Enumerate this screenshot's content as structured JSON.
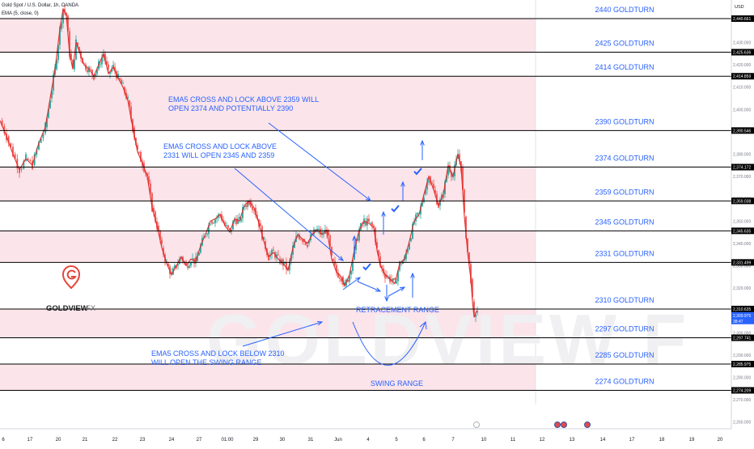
{
  "header": {
    "symbol": "Gold Spot / U.S. Dollar, 1h, OANDA",
    "indicator": "EMA (5, close, 0)"
  },
  "colors": {
    "zone": "#fbe4ea",
    "candle_up": "#26a69a",
    "candle_down": "#ef5350",
    "ema": "#e32b2b",
    "annotation": "#2962ff",
    "level_line": "#000000",
    "brand": "#e4473a"
  },
  "chart_data": {
    "type": "candlestick",
    "currency_label": "USD",
    "ylim": [
      2257,
      2449
    ],
    "x_ticks": [
      "6",
      "17",
      "20",
      "21",
      "22",
      "23",
      "24",
      "27",
      "01:00",
      "29",
      "30",
      "31",
      "Jun",
      "4",
      "5",
      "6",
      "7",
      "10",
      "11",
      "12",
      "13",
      "14",
      "17",
      "18",
      "19",
      "20"
    ],
    "y_ticks": [
      2260,
      2270,
      2280,
      2290,
      2300,
      2310,
      2320,
      2330,
      2340,
      2350,
      2360,
      2370,
      2380,
      2390,
      2400,
      2410,
      2420,
      2430,
      2440
    ],
    "levels": [
      {
        "label": "2440 GOLDTURN",
        "price": 2440.661,
        "badge": "2,440.661"
      },
      {
        "label": "2425 GOLDTURN",
        "price": 2425.636,
        "badge": "2,425.636"
      },
      {
        "label": "2414 GOLDTURN",
        "price": 2414.859,
        "badge": "2,414.859"
      },
      {
        "label": "2390 GOLDTURN",
        "price": 2390.546,
        "badge": "2,390.546"
      },
      {
        "label": "2374 GOLDTURN",
        "price": 2374.172,
        "badge": "2,374.172"
      },
      {
        "label": "2359 GOLDTURN",
        "price": 2359.038,
        "badge": "2,359.038"
      },
      {
        "label": "2345 GOLDTURN",
        "price": 2345.635,
        "badge": "2,345.635"
      },
      {
        "label": "2331 GOLDTURN",
        "price": 2331.499,
        "badge": "2,331.499"
      },
      {
        "label": "2310 GOLDTURN",
        "price": 2310.635,
        "badge": "2,310.635"
      },
      {
        "label": "2297 GOLDTURN",
        "price": 2297.741,
        "badge": "2,297.741"
      },
      {
        "label": "2285 GOLDTURN",
        "price": 2285.975,
        "badge": "2,285.975"
      },
      {
        "label": "2274 GOLDTURN",
        "price": 2274.209,
        "badge": "2,274.209"
      }
    ],
    "zones": [
      [
        2425.636,
        2440.661
      ],
      [
        2390.546,
        2414.859
      ],
      [
        2359.038,
        2374.172
      ],
      [
        2331.499,
        2345.635
      ],
      [
        2297.741,
        2310.635
      ],
      [
        2274.209,
        2285.975
      ]
    ],
    "current_price": {
      "value": "2,309.975",
      "countdown": "38:47"
    },
    "annotations": [
      "EMA5 CROSS AND LOCK ABOVE 2359 WILL OPEN 2374 AND POTENTIALLY 2390",
      "EMA5 CROSS AND LOCK ABOVE 2331 WILL OPEN 2345 AND 2359",
      "EMA5 CROSS AND LOCK BELOW 2310 WILL OPEN THE SWING RANGE",
      "RETRACEMENT RANGE",
      "SWING RANGE"
    ],
    "path_points": [
      [
        0,
        2395
      ],
      [
        8,
        2388
      ],
      [
        16,
        2380
      ],
      [
        24,
        2373
      ],
      [
        32,
        2378
      ],
      [
        40,
        2375
      ],
      [
        48,
        2385
      ],
      [
        56,
        2392
      ],
      [
        62,
        2405
      ],
      [
        68,
        2418
      ],
      [
        74,
        2436
      ],
      [
        78,
        2445
      ],
      [
        82,
        2442
      ],
      [
        86,
        2425
      ],
      [
        90,
        2418
      ],
      [
        94,
        2430
      ],
      [
        98,
        2426
      ],
      [
        104,
        2420
      ],
      [
        110,
        2418
      ],
      [
        116,
        2415
      ],
      [
        122,
        2420
      ],
      [
        128,
        2425
      ],
      [
        134,
        2416
      ],
      [
        140,
        2419
      ],
      [
        146,
        2414
      ],
      [
        152,
        2410
      ],
      [
        158,
        2404
      ],
      [
        164,
        2392
      ],
      [
        170,
        2381
      ],
      [
        176,
        2376
      ],
      [
        182,
        2370
      ],
      [
        188,
        2356
      ],
      [
        194,
        2348
      ],
      [
        200,
        2338
      ],
      [
        206,
        2331
      ],
      [
        212,
        2326
      ],
      [
        218,
        2330
      ],
      [
        224,
        2334
      ],
      [
        230,
        2330
      ],
      [
        236,
        2333
      ],
      [
        242,
        2332
      ],
      [
        248,
        2339
      ],
      [
        254,
        2344
      ],
      [
        260,
        2350
      ],
      [
        266,
        2351
      ],
      [
        272,
        2353
      ],
      [
        278,
        2348
      ],
      [
        284,
        2345
      ],
      [
        290,
        2351
      ],
      [
        296,
        2350
      ],
      [
        302,
        2357
      ],
      [
        308,
        2359
      ],
      [
        314,
        2356
      ],
      [
        320,
        2349
      ],
      [
        326,
        2341
      ],
      [
        332,
        2334
      ],
      [
        338,
        2336
      ],
      [
        344,
        2333
      ],
      [
        350,
        2331
      ],
      [
        356,
        2328
      ],
      [
        362,
        2338
      ],
      [
        368,
        2344
      ],
      [
        374,
        2342
      ],
      [
        380,
        2340
      ],
      [
        386,
        2344
      ],
      [
        392,
        2346
      ],
      [
        398,
        2344
      ],
      [
        404,
        2346
      ],
      [
        410,
        2333
      ],
      [
        416,
        2327
      ],
      [
        422,
        2325
      ],
      [
        426,
        2321
      ],
      [
        432,
        2326
      ],
      [
        438,
        2337
      ],
      [
        444,
        2346
      ],
      [
        450,
        2350
      ],
      [
        456,
        2349
      ],
      [
        462,
        2347
      ],
      [
        466,
        2337
      ],
      [
        470,
        2330
      ],
      [
        476,
        2326
      ],
      [
        482,
        2324
      ],
      [
        488,
        2322
      ],
      [
        494,
        2331
      ],
      [
        500,
        2333
      ],
      [
        506,
        2341
      ],
      [
        512,
        2350
      ],
      [
        518,
        2353
      ],
      [
        524,
        2362
      ],
      [
        530,
        2370
      ],
      [
        536,
        2364
      ],
      [
        542,
        2357
      ],
      [
        548,
        2362
      ],
      [
        554,
        2375
      ],
      [
        560,
        2370
      ],
      [
        566,
        2380
      ],
      [
        570,
        2374
      ],
      [
        574,
        2352
      ],
      [
        578,
        2336
      ],
      [
        582,
        2324
      ],
      [
        584,
        2314
      ],
      [
        586,
        2307
      ],
      [
        588,
        2309
      ],
      [
        590,
        2310
      ]
    ]
  }
}
